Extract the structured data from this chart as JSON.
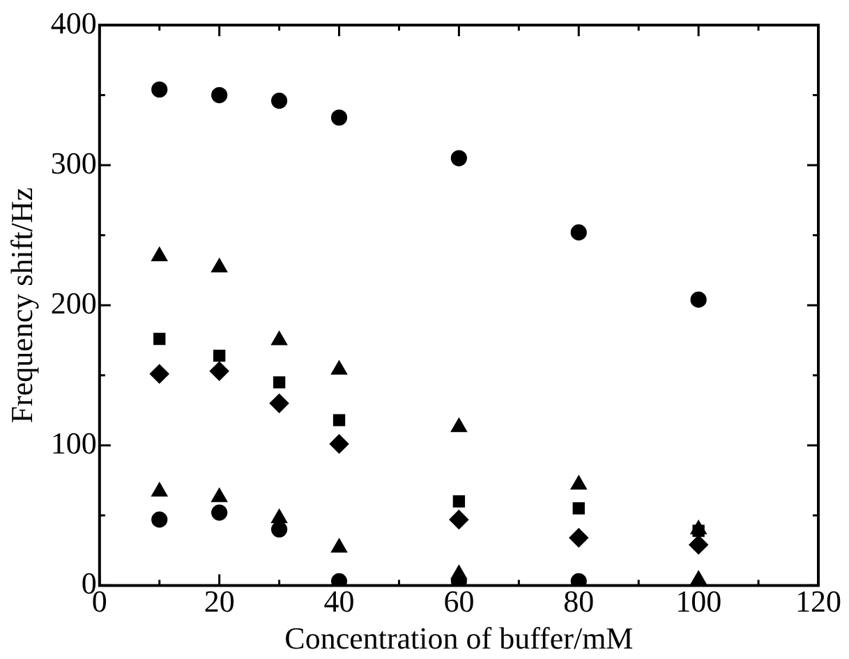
{
  "chart_data": {
    "type": "scatter",
    "xlabel": "Concentration of buffer/mM",
    "ylabel": "Frequency shift/Hz",
    "x": [
      10,
      20,
      30,
      40,
      60,
      80,
      100
    ],
    "series": [
      {
        "color": "#000000",
        "marker": "circle",
        "values": [
          354,
          350,
          346,
          334,
          305,
          252,
          204
        ]
      },
      {
        "color": "#000000",
        "marker": "triangle",
        "values": [
          235,
          227,
          175,
          154,
          113,
          72,
          40
        ]
      },
      {
        "color": "#000000",
        "marker": "square",
        "values": [
          176,
          164,
          145,
          118,
          60,
          55,
          39
        ]
      },
      {
        "color": "#000000",
        "marker": "diamond",
        "values": [
          151,
          153,
          130,
          101,
          47,
          34,
          29
        ]
      },
      {
        "color": "#000000",
        "marker": "triangle",
        "values": [
          67,
          63,
          48,
          27,
          8,
          null,
          4
        ]
      },
      {
        "color": "#000000",
        "marker": "circle",
        "values": [
          47,
          52,
          40,
          3,
          3,
          3,
          null
        ]
      }
    ],
    "xlim": [
      0,
      120
    ],
    "xticks": [
      0,
      20,
      40,
      60,
      80,
      100,
      120
    ],
    "ylim": [
      0,
      400
    ],
    "yticks": [
      0,
      100,
      200,
      300,
      400
    ],
    "grid": false,
    "legend": false
  }
}
